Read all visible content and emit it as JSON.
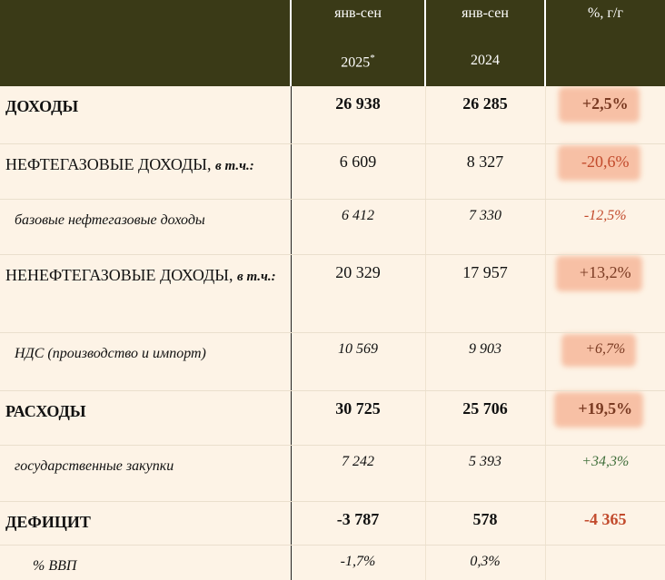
{
  "header": {
    "columns": [
      {
        "line1": "янв-сен",
        "line2": "2025",
        "sup": "*"
      },
      {
        "line1": "янв-сен",
        "line2": "2024"
      },
      {
        "line1": "%, г/г"
      }
    ]
  },
  "rows": [
    {
      "label": "ДОХОДЫ",
      "values": [
        "26 938",
        "26 285",
        "+2,5%"
      ]
    },
    {
      "label": "НЕФТЕГАЗОВЫЕ ДОХОДЫ,",
      "note": "в т.ч.:",
      "values": [
        "6 609",
        "8 327",
        "-20,6%"
      ]
    },
    {
      "label": "базовые нефтегазовые доходы",
      "values": [
        "6 412",
        "7 330",
        "-12,5%"
      ]
    },
    {
      "label": "НЕНЕФТЕГАЗОВЫЕ ДОХОДЫ,",
      "note": "в т.ч.:",
      "values": [
        "20 329",
        "17 957",
        "+13,2%"
      ]
    },
    {
      "label": "НДС (производство и импорт)",
      "values": [
        "10 569",
        "9 903",
        "+6,7%"
      ]
    },
    {
      "label": "РАСХОДЫ",
      "values": [
        "30 725",
        "25 706",
        "+19,5%"
      ]
    },
    {
      "label": "государственные закупки",
      "values": [
        "7 242",
        "5 393",
        "+34,3%"
      ]
    },
    {
      "label": "ДЕФИЦИТ",
      "values": [
        "-3 787",
        "578",
        "-4 365"
      ]
    },
    {
      "label": "% ВВП",
      "values": [
        "-1,7%",
        "0,3%"
      ]
    }
  ]
}
